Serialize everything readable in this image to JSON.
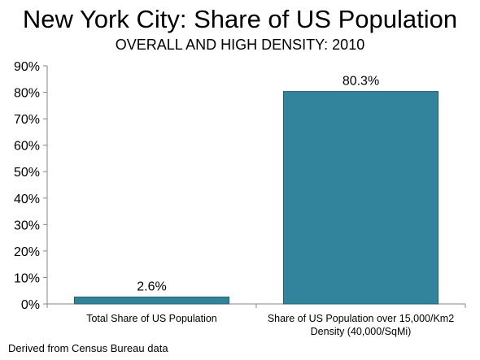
{
  "chart_data": {
    "type": "bar",
    "title": "New York City: Share of US Population",
    "subtitle": "OVERALL AND HIGH DENSITY: 2010",
    "categories": [
      [
        "Total Share of US Population"
      ],
      [
        "Share of US Population over 15,000/Km2",
        "Density (40,000/SqMi)"
      ]
    ],
    "values": [
      2.6,
      80.3
    ],
    "data_labels": [
      "2.6%",
      "80.3%"
    ],
    "ylim": [
      0,
      90
    ],
    "yticks": [
      0,
      10,
      20,
      30,
      40,
      50,
      60,
      70,
      80,
      90
    ],
    "ytick_labels": [
      "0%",
      "10%",
      "20%",
      "30%",
      "40%",
      "50%",
      "60%",
      "70%",
      "80%",
      "90%"
    ],
    "xlabel": "",
    "ylabel": "",
    "grid": false,
    "legend": "none",
    "bar_color": "#31849B",
    "bar_stroke": "#1F5F70"
  },
  "footnote": "Derived from Census Bureau data"
}
